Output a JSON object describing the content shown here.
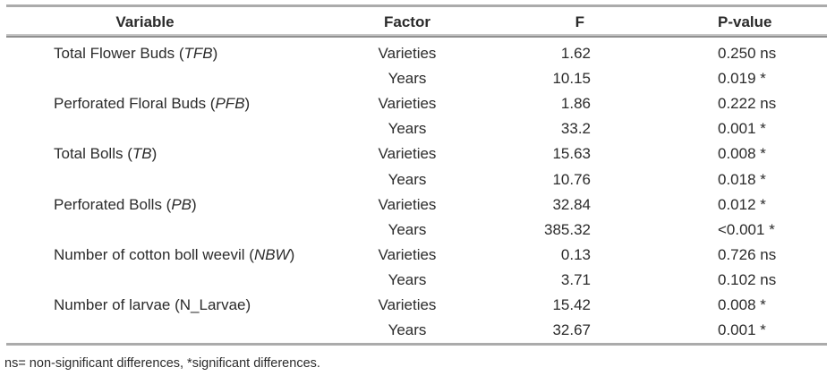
{
  "colors": {
    "rule": "#ababab",
    "rule_dark": "#8f8f8f",
    "text": "#2b2b2b"
  },
  "table": {
    "columns": [
      "Variable",
      "Factor",
      "F",
      "P-value"
    ],
    "rows": [
      {
        "var_pre": "Total Flower Buds (",
        "var_abbr": "TFB",
        "var_post": ")",
        "factor": "Varieties",
        "f": "1.62",
        "p": "0.250 ns"
      },
      {
        "var_pre": "",
        "var_abbr": "",
        "var_post": "",
        "factor": "Years",
        "f": "10.15",
        "p": "0.019 *"
      },
      {
        "var_pre": "Perforated Floral Buds (",
        "var_abbr": "PFB",
        "var_post": ")",
        "factor": "Varieties",
        "f": "1.86",
        "p": "0.222 ns"
      },
      {
        "var_pre": "",
        "var_abbr": "",
        "var_post": "",
        "factor": "Years",
        "f": "33.2",
        "p": "0.001 *"
      },
      {
        "var_pre": "Total Bolls (",
        "var_abbr": "TB",
        "var_post": ")",
        "factor": "Varieties",
        "f": "15.63",
        "p": "0.008 *"
      },
      {
        "var_pre": "",
        "var_abbr": "",
        "var_post": "",
        "factor": "Years",
        "f": "10.76",
        "p": "0.018 *"
      },
      {
        "var_pre": "Perforated Bolls (",
        "var_abbr": "PB",
        "var_post": ")",
        "factor": "Varieties",
        "f": "32.84",
        "p": "0.012 *"
      },
      {
        "var_pre": "",
        "var_abbr": "",
        "var_post": "",
        "factor": "Years",
        "f": "385.32",
        "p": "<0.001 *"
      },
      {
        "var_pre": "Number of cotton boll weevil (",
        "var_abbr": "NBW",
        "var_post": ")",
        "factor": "Varieties",
        "f": "0.13",
        "p": "0.726 ns"
      },
      {
        "var_pre": "",
        "var_abbr": "",
        "var_post": "",
        "factor": "Years",
        "f": "3.71",
        "p": "0.102 ns"
      },
      {
        "var_pre": "Number of larvae (N_Larvae)",
        "var_abbr": "",
        "var_post": "",
        "factor": "Varieties",
        "f": "15.42",
        "p": "0.008 *"
      },
      {
        "var_pre": "",
        "var_abbr": "",
        "var_post": "",
        "factor": "Years",
        "f": "32.67",
        "p": "0.001 *"
      }
    ],
    "footnote": "ns= non-significant differences, *significant differences."
  }
}
